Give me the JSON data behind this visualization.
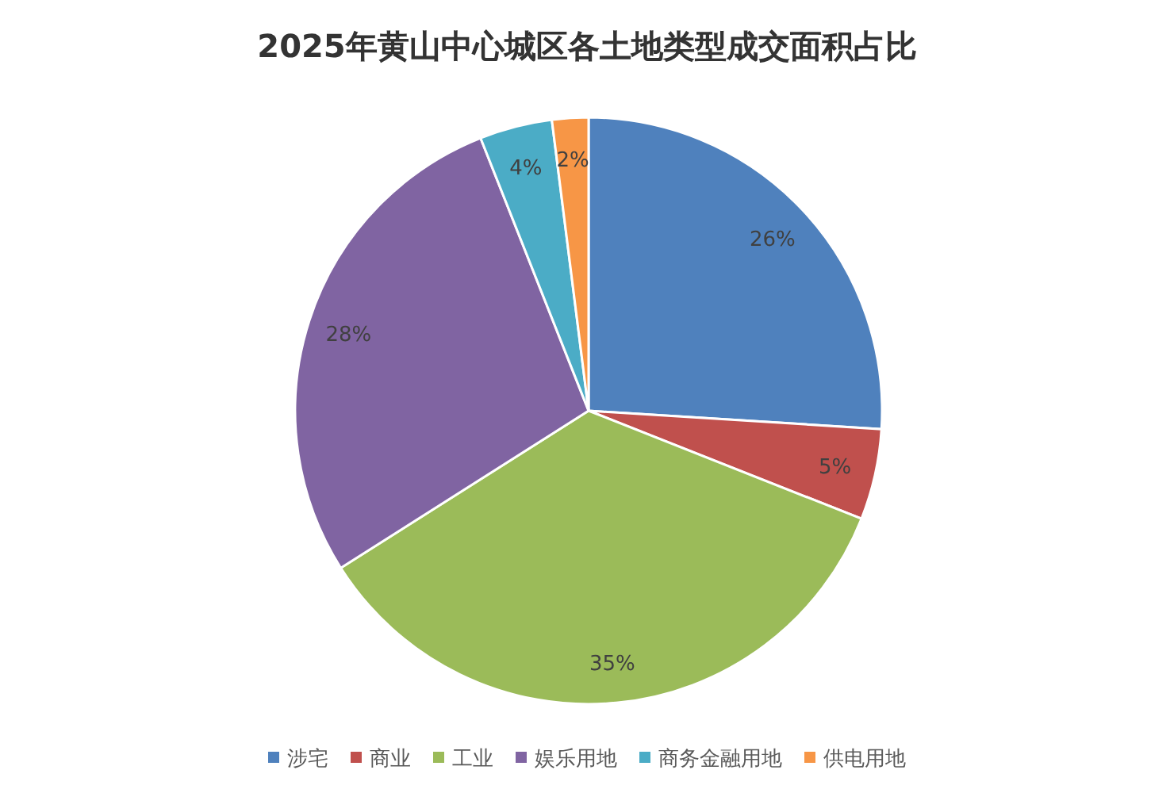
{
  "chart_data": {
    "type": "pie",
    "title": "2025年黄山中心城区各土地类型成交面积占比",
    "categories": [
      "涉宅",
      "商业",
      "工业",
      "娱乐用地",
      "商务金融用地",
      "供电用地"
    ],
    "values": [
      26,
      5,
      35,
      28,
      4,
      2
    ],
    "value_labels": [
      "26%",
      "5%",
      "35%",
      "28%",
      "4%",
      "2%"
    ],
    "colors": [
      "#4f81bd",
      "#c0504d",
      "#9bbb59",
      "#8064a2",
      "#4bacc6",
      "#f79646"
    ],
    "legend": "bottom"
  }
}
